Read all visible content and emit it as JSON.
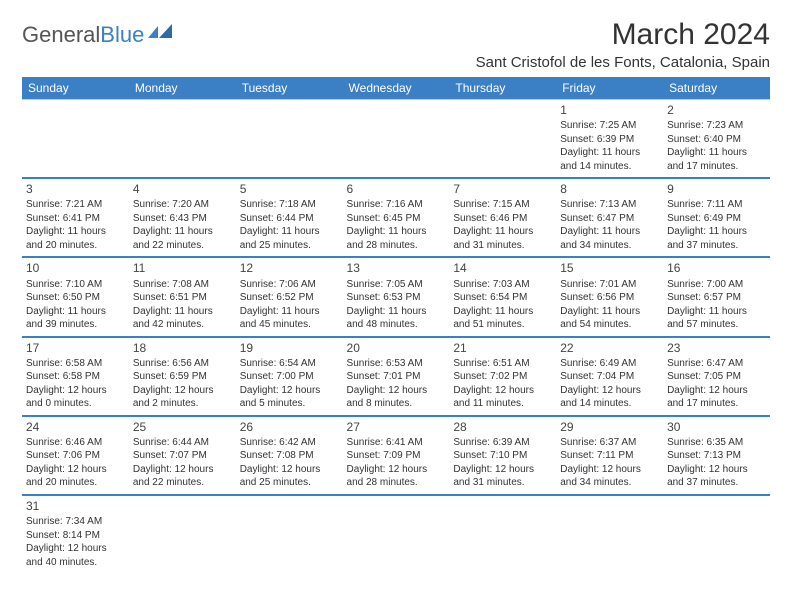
{
  "logo": {
    "text1": "General",
    "text2": "Blue"
  },
  "title": "March 2024",
  "location": "Sant Cristofol de les Fonts, Catalonia, Spain",
  "colors": {
    "header_bg": "#3b7fc4",
    "header_fg": "#ffffff",
    "accent_line": "#3b7fc4",
    "grid_line": "#cccccc",
    "text": "#333333",
    "background": "#ffffff"
  },
  "typography": {
    "title_fontsize": 30,
    "location_fontsize": 15,
    "dayheader_fontsize": 12,
    "cell_fontsize": 10,
    "daynum_fontsize": 12
  },
  "day_headers": [
    "Sunday",
    "Monday",
    "Tuesday",
    "Wednesday",
    "Thursday",
    "Friday",
    "Saturday"
  ],
  "weeks": [
    [
      null,
      null,
      null,
      null,
      null,
      {
        "n": "1",
        "sunrise": "7:25 AM",
        "sunset": "6:39 PM",
        "dl": "11 hours and 14 minutes."
      },
      {
        "n": "2",
        "sunrise": "7:23 AM",
        "sunset": "6:40 PM",
        "dl": "11 hours and 17 minutes."
      }
    ],
    [
      {
        "n": "3",
        "sunrise": "7:21 AM",
        "sunset": "6:41 PM",
        "dl": "11 hours and 20 minutes."
      },
      {
        "n": "4",
        "sunrise": "7:20 AM",
        "sunset": "6:43 PM",
        "dl": "11 hours and 22 minutes."
      },
      {
        "n": "5",
        "sunrise": "7:18 AM",
        "sunset": "6:44 PM",
        "dl": "11 hours and 25 minutes."
      },
      {
        "n": "6",
        "sunrise": "7:16 AM",
        "sunset": "6:45 PM",
        "dl": "11 hours and 28 minutes."
      },
      {
        "n": "7",
        "sunrise": "7:15 AM",
        "sunset": "6:46 PM",
        "dl": "11 hours and 31 minutes."
      },
      {
        "n": "8",
        "sunrise": "7:13 AM",
        "sunset": "6:47 PM",
        "dl": "11 hours and 34 minutes."
      },
      {
        "n": "9",
        "sunrise": "7:11 AM",
        "sunset": "6:49 PM",
        "dl": "11 hours and 37 minutes."
      }
    ],
    [
      {
        "n": "10",
        "sunrise": "7:10 AM",
        "sunset": "6:50 PM",
        "dl": "11 hours and 39 minutes."
      },
      {
        "n": "11",
        "sunrise": "7:08 AM",
        "sunset": "6:51 PM",
        "dl": "11 hours and 42 minutes."
      },
      {
        "n": "12",
        "sunrise": "7:06 AM",
        "sunset": "6:52 PM",
        "dl": "11 hours and 45 minutes."
      },
      {
        "n": "13",
        "sunrise": "7:05 AM",
        "sunset": "6:53 PM",
        "dl": "11 hours and 48 minutes."
      },
      {
        "n": "14",
        "sunrise": "7:03 AM",
        "sunset": "6:54 PM",
        "dl": "11 hours and 51 minutes."
      },
      {
        "n": "15",
        "sunrise": "7:01 AM",
        "sunset": "6:56 PM",
        "dl": "11 hours and 54 minutes."
      },
      {
        "n": "16",
        "sunrise": "7:00 AM",
        "sunset": "6:57 PM",
        "dl": "11 hours and 57 minutes."
      }
    ],
    [
      {
        "n": "17",
        "sunrise": "6:58 AM",
        "sunset": "6:58 PM",
        "dl": "12 hours and 0 minutes."
      },
      {
        "n": "18",
        "sunrise": "6:56 AM",
        "sunset": "6:59 PM",
        "dl": "12 hours and 2 minutes."
      },
      {
        "n": "19",
        "sunrise": "6:54 AM",
        "sunset": "7:00 PM",
        "dl": "12 hours and 5 minutes."
      },
      {
        "n": "20",
        "sunrise": "6:53 AM",
        "sunset": "7:01 PM",
        "dl": "12 hours and 8 minutes."
      },
      {
        "n": "21",
        "sunrise": "6:51 AM",
        "sunset": "7:02 PM",
        "dl": "12 hours and 11 minutes."
      },
      {
        "n": "22",
        "sunrise": "6:49 AM",
        "sunset": "7:04 PM",
        "dl": "12 hours and 14 minutes."
      },
      {
        "n": "23",
        "sunrise": "6:47 AM",
        "sunset": "7:05 PM",
        "dl": "12 hours and 17 minutes."
      }
    ],
    [
      {
        "n": "24",
        "sunrise": "6:46 AM",
        "sunset": "7:06 PM",
        "dl": "12 hours and 20 minutes."
      },
      {
        "n": "25",
        "sunrise": "6:44 AM",
        "sunset": "7:07 PM",
        "dl": "12 hours and 22 minutes."
      },
      {
        "n": "26",
        "sunrise": "6:42 AM",
        "sunset": "7:08 PM",
        "dl": "12 hours and 25 minutes."
      },
      {
        "n": "27",
        "sunrise": "6:41 AM",
        "sunset": "7:09 PM",
        "dl": "12 hours and 28 minutes."
      },
      {
        "n": "28",
        "sunrise": "6:39 AM",
        "sunset": "7:10 PM",
        "dl": "12 hours and 31 minutes."
      },
      {
        "n": "29",
        "sunrise": "6:37 AM",
        "sunset": "7:11 PM",
        "dl": "12 hours and 34 minutes."
      },
      {
        "n": "30",
        "sunrise": "6:35 AM",
        "sunset": "7:13 PM",
        "dl": "12 hours and 37 minutes."
      }
    ],
    [
      {
        "n": "31",
        "sunrise": "7:34 AM",
        "sunset": "8:14 PM",
        "dl": "12 hours and 40 minutes."
      },
      null,
      null,
      null,
      null,
      null,
      null
    ]
  ],
  "labels": {
    "sunrise": "Sunrise:",
    "sunset": "Sunset:",
    "daylight": "Daylight:"
  }
}
